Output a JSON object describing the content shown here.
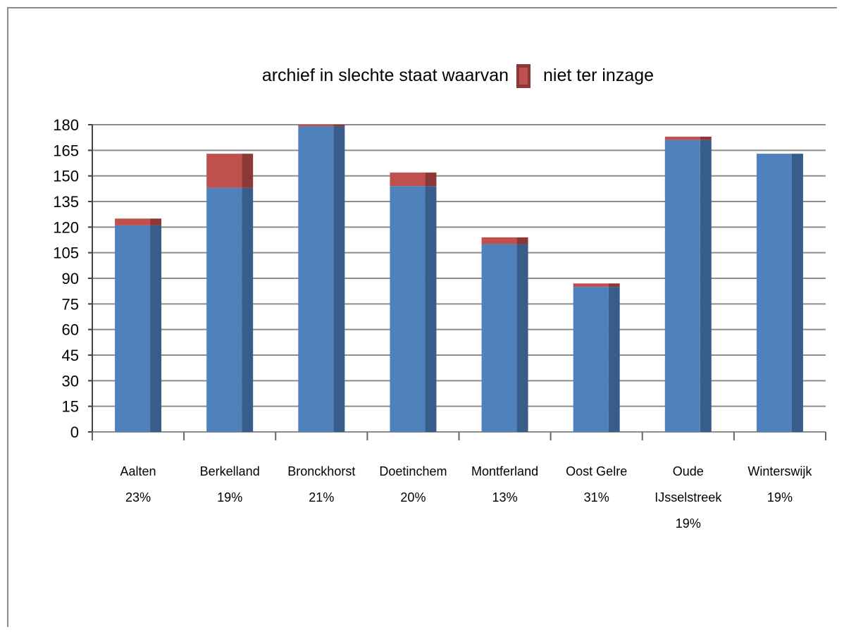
{
  "chart_data": {
    "type": "bar",
    "stacked": true,
    "three_d": true,
    "title_before": "archief in slechte staat waarvan",
    "title_after": "niet ter inzage",
    "categories": [
      [
        "Aalten",
        "23%"
      ],
      [
        "Berkelland",
        "19%"
      ],
      [
        "Bronckhorst",
        "21%"
      ],
      [
        "Doetinchem",
        "20%"
      ],
      [
        "Montferland",
        "13%"
      ],
      [
        "Oost Gelre",
        "31%"
      ],
      [
        "Oude",
        "IJsselstreek",
        "19%"
      ],
      [
        "Winterswijk",
        "19%"
      ]
    ],
    "series": [
      {
        "values": [
          121,
          143,
          179,
          144,
          110,
          85,
          171,
          163
        ]
      },
      {
        "values": [
          4,
          20,
          1,
          8,
          4,
          2,
          2,
          0
        ]
      }
    ],
    "ylim": [
      0,
      180
    ],
    "yticks": [
      "0",
      "15",
      "30",
      "45",
      "60",
      "75",
      "90",
      "105",
      "120",
      "135",
      "150",
      "165",
      "180"
    ],
    "grid": true,
    "colors": {
      "blue_face": "#4f81bd",
      "blue_side": "#385d8a",
      "red_face": "#c0504d",
      "red_side": "#8c3836",
      "gridline": "#8c8c8c"
    }
  }
}
